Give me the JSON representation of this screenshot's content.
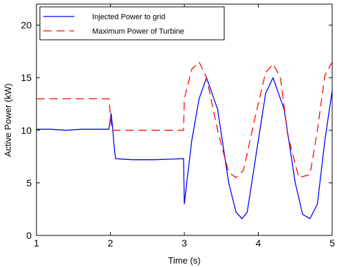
{
  "chart_data": {
    "type": "line",
    "title": "",
    "xlabel": "Time (s)",
    "ylabel": "Active Power (kW)",
    "xlim": [
      1,
      5
    ],
    "ylim": [
      0,
      22
    ],
    "xticks": [
      1,
      2,
      3,
      4,
      5
    ],
    "yticks": [
      0,
      5,
      10,
      15,
      20
    ],
    "grid": false,
    "legend_position": "top-left",
    "series": [
      {
        "name": "Injected Power to grid",
        "color": "#0000ff",
        "style": "solid",
        "x": [
          1.0,
          1.2,
          1.4,
          1.6,
          1.8,
          1.98,
          2.01,
          2.03,
          2.05,
          2.07,
          2.3,
          2.6,
          2.99,
          3.0,
          3.03,
          3.1,
          3.2,
          3.3,
          3.45,
          3.6,
          3.7,
          3.78,
          3.85,
          4.0,
          4.1,
          4.2,
          4.35,
          4.5,
          4.6,
          4.7,
          4.8,
          4.9,
          5.0
        ],
        "y": [
          10.1,
          10.1,
          10.0,
          10.1,
          10.1,
          10.1,
          11.6,
          10.3,
          8.5,
          7.3,
          7.2,
          7.2,
          7.3,
          3.0,
          4.8,
          9.0,
          13.0,
          15.0,
          12.0,
          5.0,
          2.2,
          1.6,
          2.2,
          9.0,
          13.5,
          15.0,
          12.0,
          5.0,
          2.0,
          1.6,
          3.0,
          9.0,
          13.8
        ]
      },
      {
        "name": "Maximum Power of Turbine",
        "color": "#ff0000",
        "style": "dashed",
        "x": [
          1.0,
          1.5,
          1.98,
          2.02,
          2.5,
          2.99,
          3.0,
          3.1,
          3.2,
          3.3,
          3.45,
          3.6,
          3.7,
          3.8,
          3.95,
          4.1,
          4.2,
          4.3,
          4.4,
          4.55,
          4.7,
          4.8,
          4.9,
          5.0
        ],
        "y": [
          13.0,
          13.0,
          13.0,
          10.0,
          10.0,
          10.0,
          13.0,
          15.8,
          16.5,
          15.0,
          10.0,
          6.0,
          5.5,
          6.2,
          11.0,
          15.5,
          16.3,
          15.0,
          9.5,
          5.5,
          5.8,
          10.0,
          15.2,
          16.5
        ]
      }
    ]
  }
}
